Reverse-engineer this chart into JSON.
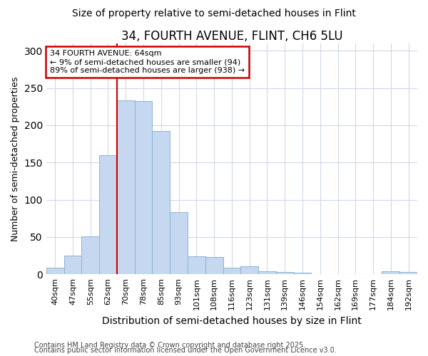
{
  "title": "34, FOURTH AVENUE, FLINT, CH6 5LU",
  "subtitle": "Size of property relative to semi-detached houses in Flint",
  "xlabel": "Distribution of semi-detached houses by size in Flint",
  "ylabel": "Number of semi-detached properties",
  "categories": [
    "40sqm",
    "47sqm",
    "55sqm",
    "62sqm",
    "70sqm",
    "78sqm",
    "85sqm",
    "93sqm",
    "101sqm",
    "108sqm",
    "116sqm",
    "123sqm",
    "131sqm",
    "139sqm",
    "146sqm",
    "154sqm",
    "162sqm",
    "169sqm",
    "177sqm",
    "184sqm",
    "192sqm"
  ],
  "values": [
    9,
    25,
    51,
    160,
    233,
    232,
    192,
    83,
    24,
    23,
    9,
    11,
    4,
    3,
    2,
    0,
    0,
    0,
    0,
    4,
    3
  ],
  "bar_color": "#c5d8ef",
  "bar_edge_color": "#8ab4d8",
  "annotation_title": "34 FOURTH AVENUE: 64sqm",
  "annotation_line1": "← 9% of semi-detached houses are smaller (94)",
  "annotation_line2": "89% of semi-detached houses are larger (938) →",
  "annotation_box_color": "#ffffff",
  "annotation_box_edge": "#cc0000",
  "vline_color": "#cc0000",
  "footnote1": "Contains HM Land Registry data © Crown copyright and database right 2025.",
  "footnote2": "Contains public sector information licensed under the Open Government Licence v3.0.",
  "background_color": "#ffffff",
  "plot_bg_color": "#ffffff",
  "ylim": [
    0,
    310
  ],
  "yticks": [
    0,
    50,
    100,
    150,
    200,
    250,
    300
  ],
  "grid_color": "#d0d8e8",
  "title_fontsize": 12,
  "subtitle_fontsize": 10,
  "xlabel_fontsize": 10,
  "ylabel_fontsize": 9,
  "tick_fontsize": 8,
  "footnote_fontsize": 7
}
